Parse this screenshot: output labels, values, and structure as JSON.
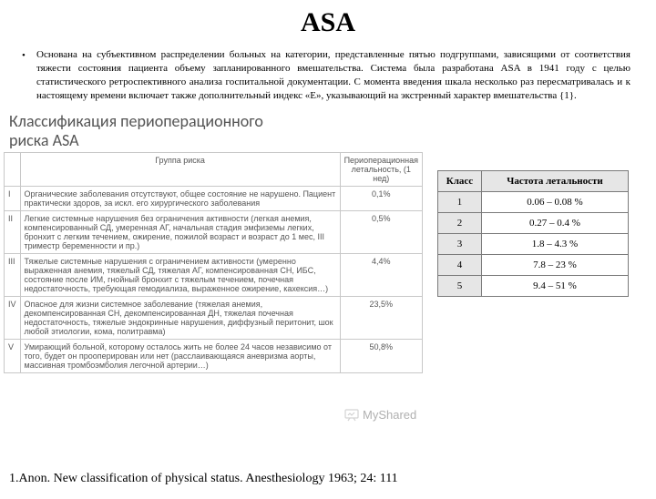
{
  "title": "ASA",
  "intro": "Основана на субъективном распределении больных на категории, представленные пятью подгруппами, зависящими от соответствия тяжести состояния пациента объему запланированного вмешательства. Система была разработана ASA в 1941 году с целью статистического ретроспективного анализа госпитальной документации. С момента введения шкала несколько раз пересматривалась и к настоящему времени включает также дополнительный индекс «Е», указывающий на экстренный характер вмешательства {1}.",
  "subtitle": "Классификация периоперационного риска ASA",
  "big_table": {
    "headers": [
      "",
      "Группа риска",
      "Периоперационная летальность, (1 нед)"
    ],
    "rows": [
      {
        "num": "I",
        "desc": "Органические заболевания отсутствуют, общее состояние не нарушено. Пациент практически здоров, за искл. его хирургического заболевания",
        "pct": "0,1%"
      },
      {
        "num": "II",
        "desc": "Легкие системные нарушения без ограничения активности (легкая анемия, компенсированный СД, умеренная АГ, начальная стадия эмфиземы легких, бронхит с легким течением, ожирение, пожилой возраст и возраст до 1 мес, III триместр беременности и пр.)",
        "pct": "0,5%"
      },
      {
        "num": "III",
        "desc": "Тяжелые системные нарушения с ограничением активности (умеренно выраженная анемия, тяжелый СД, тяжелая АГ, компенсированная СН, ИБС, состояние после ИМ, гнойный бронхит с тяжелым течением, почечная недостаточность, требующая гемодиализа, выраженное ожирение, кахексия…)",
        "pct": "4,4%"
      },
      {
        "num": "IV",
        "desc": "Опасное для жизни системное заболевание (тяжелая анемия, декомпенсированная СН, декомпенсированная ДН, тяжелая почечная недостаточность, тяжелые эндокринные нарушения, диффузный перитонит, шок любой этиологии, кома, политравма)",
        "pct": "23,5%"
      },
      {
        "num": "V",
        "desc": "Умирающий больной, которому осталось жить не более 24 часов независимо от того, будет он прооперирован или нет (расслаивающаяся аневризма аорты, массивная тромбоэмболия легочной артерии…)",
        "pct": "50,8%"
      }
    ]
  },
  "small_table": {
    "headers": [
      "Класс",
      "Частота летальности"
    ],
    "rows": [
      {
        "cls": "1",
        "val": "0.06 – 0.08 %"
      },
      {
        "cls": "2",
        "val": "0.27 – 0.4 %"
      },
      {
        "cls": "3",
        "val": "1.8 – 4.3 %"
      },
      {
        "cls": "4",
        "val": "7.8 – 23 %"
      },
      {
        "cls": "5",
        "val": "9.4 – 51 %"
      }
    ]
  },
  "watermark": "MyShared",
  "footnote": "1.Anon. New classification of physical status. Anesthesiology 1963; 24: 111",
  "colors": {
    "text": "#000000",
    "muted": "#555555",
    "border_big": "#c8c8c8",
    "border_small": "#7a7a7a",
    "header_bg": "#e6e6e6"
  }
}
